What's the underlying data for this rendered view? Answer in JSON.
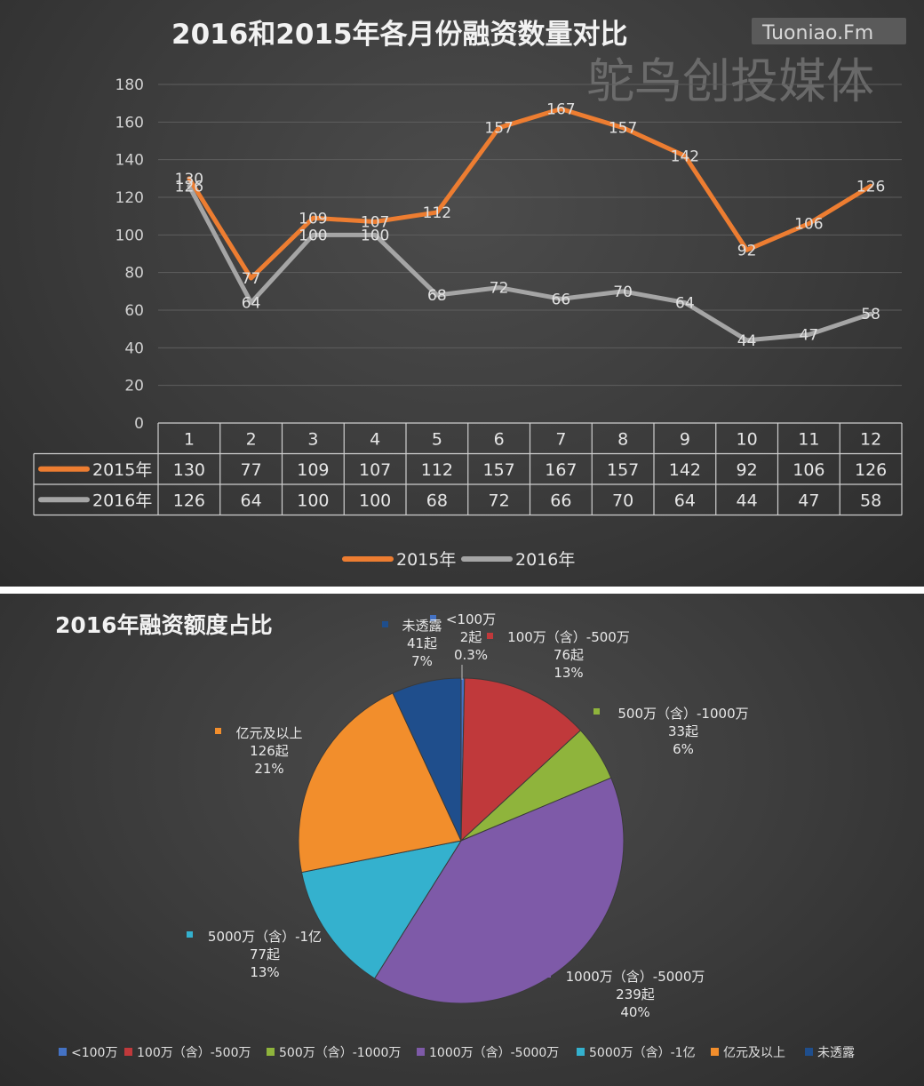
{
  "watermark": {
    "site": "Tuoniao.Fm",
    "brand": "鸵鸟创投媒体"
  },
  "chart_data": [
    {
      "type": "line",
      "title": "2016和2015年各月份融资数量对比",
      "categories": [
        "1",
        "2",
        "3",
        "4",
        "5",
        "6",
        "7",
        "8",
        "9",
        "10",
        "11",
        "12"
      ],
      "yticks": [
        "0",
        "20",
        "40",
        "60",
        "80",
        "100",
        "120",
        "140",
        "160",
        "180"
      ],
      "ylim": [
        0,
        180
      ],
      "grid": true,
      "legend_position": "bottom",
      "data_table": true,
      "series": [
        {
          "name": "2015年",
          "color": "#ed7d31",
          "values": [
            130,
            77,
            109,
            107,
            112,
            157,
            167,
            157,
            142,
            92,
            106,
            126
          ]
        },
        {
          "name": "2016年",
          "color": "#a5a5a5",
          "values": [
            126,
            64,
            100,
            100,
            68,
            72,
            66,
            70,
            64,
            44,
            47,
            58
          ]
        }
      ]
    },
    {
      "type": "pie",
      "title": "2016年融资额度占比",
      "legend_position": "bottom",
      "slices": [
        {
          "name": "<100万",
          "value": 2,
          "count_label": "2起",
          "percent_label": "0.3%",
          "color": "#4472c4"
        },
        {
          "name": "100万（含）-500万",
          "value": 76,
          "count_label": "76起",
          "percent_label": "13%",
          "color": "#c0393b"
        },
        {
          "name": "500万（含）-1000万",
          "value": 33,
          "count_label": "33起",
          "percent_label": "6%",
          "color": "#8fb43c"
        },
        {
          "name": "1000万（含）-5000万",
          "value": 239,
          "count_label": "239起",
          "percent_label": "40%",
          "color": "#7e5aa8"
        },
        {
          "name": "5000万（含）-1亿",
          "value": 77,
          "count_label": "77起",
          "percent_label": "13%",
          "color": "#34b1ce"
        },
        {
          "name": "亿元及以上",
          "value": 126,
          "count_label": "126起",
          "percent_label": "21%",
          "color": "#f28e2c"
        },
        {
          "name": "未透露",
          "value": 41,
          "count_label": "41起",
          "percent_label": "7%",
          "color": "#1f4e8c"
        }
      ],
      "label_names": [
        "<100万",
        "100万（含）-500万",
        "500万（含）-1000万",
        "1000万（含）-5000万",
        "5000万（含）-1亿",
        "亿元及以上",
        "未透露"
      ],
      "legend_names": [
        "<100万",
        "100万（含）-500万",
        "500万（含）-1000万",
        "1000万（含）-5000万",
        "5000万（含）-1亿",
        "亿元及以上",
        "未透露"
      ]
    }
  ]
}
